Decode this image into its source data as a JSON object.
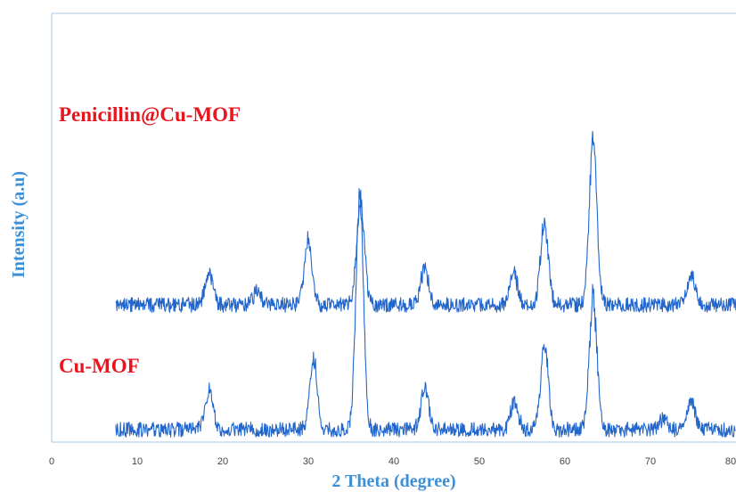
{
  "chart_data": {
    "type": "line",
    "xlabel": "2 Theta (degree)",
    "ylabel": "Intensity (a.u)",
    "xlim": [
      0,
      80
    ],
    "x_ticks": [
      "0",
      "10",
      "20",
      "30",
      "40",
      "50",
      "60",
      "70",
      "80"
    ],
    "y_tick_labels": false,
    "grid": false,
    "colors": {
      "line": "#2266cc",
      "label": "#e8141e",
      "axis_title": "#3d8fd6",
      "frame": "#a8c4e0"
    },
    "series": [
      {
        "name": "Penicillin@Cu-MOF",
        "baseline_intensity": 1.0,
        "noise": 0.06,
        "peaks": [
          {
            "x": 18.4,
            "intensity": 0.26
          },
          {
            "x": 24.0,
            "intensity": 0.1
          },
          {
            "x": 30.0,
            "intensity": 0.52
          },
          {
            "x": 36.1,
            "intensity": 0.82
          },
          {
            "x": 43.6,
            "intensity": 0.3
          },
          {
            "x": 54.0,
            "intensity": 0.25
          },
          {
            "x": 57.6,
            "intensity": 0.68
          },
          {
            "x": 63.3,
            "intensity": 1.3
          },
          {
            "x": 74.8,
            "intensity": 0.24
          }
        ]
      },
      {
        "name": "Cu-MOF",
        "baseline_intensity": 0.0,
        "noise": 0.06,
        "peaks": [
          {
            "x": 18.4,
            "intensity": 0.3
          },
          {
            "x": 30.6,
            "intensity": 0.55
          },
          {
            "x": 36.0,
            "intensity": 1.8
          },
          {
            "x": 43.6,
            "intensity": 0.33
          },
          {
            "x": 54.1,
            "intensity": 0.22
          },
          {
            "x": 57.6,
            "intensity": 0.68
          },
          {
            "x": 63.3,
            "intensity": 1.05
          },
          {
            "x": 71.5,
            "intensity": 0.08
          },
          {
            "x": 74.8,
            "intensity": 0.24
          }
        ]
      }
    ],
    "x_range_recorded": [
      7.5,
      80
    ]
  }
}
